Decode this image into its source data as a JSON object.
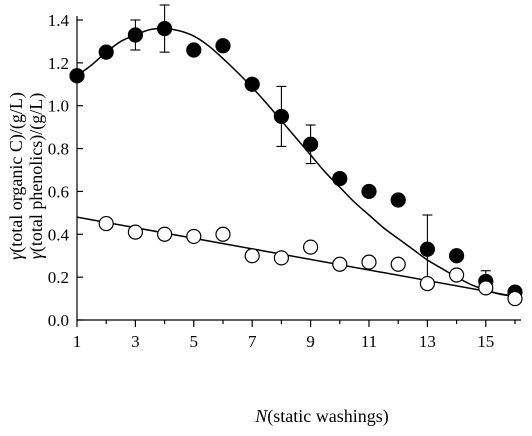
{
  "chart_data": {
    "type": "scatter",
    "x_label": {
      "prefix": "N",
      "rest": "(static washings)"
    },
    "y_labels": [
      {
        "prefix": "γ",
        "rest": "(total organic C)/(g/L)"
      },
      {
        "prefix": "γ",
        "rest": "(total phenolics)/(g/L)"
      }
    ],
    "xlim": [
      1,
      16
    ],
    "ylim": [
      0.0,
      1.4
    ],
    "x_ticks": [
      1,
      3,
      5,
      7,
      9,
      11,
      13,
      15
    ],
    "x_tick_labels": [
      "1",
      "3",
      "5",
      "7",
      "9",
      "11",
      "13",
      "15"
    ],
    "y_ticks": [
      0.0,
      0.2,
      0.4,
      0.6,
      0.8,
      1.0,
      1.2,
      1.4
    ],
    "y_tick_labels": [
      "0.0",
      "0.2",
      "0.4",
      "0.6",
      "0.8",
      "1.0",
      "1.2",
      "1.4"
    ],
    "grid": false,
    "colors": {
      "axis": "#000000",
      "filled_marker": "#000000",
      "open_marker_fill": "#ffffff"
    },
    "series": [
      {
        "marker": "filled-circle",
        "x": [
          1,
          2,
          3,
          4,
          5,
          6,
          7,
          8,
          9,
          10,
          11,
          12,
          13,
          14,
          15,
          16
        ],
        "y": [
          1.14,
          1.25,
          1.33,
          1.36,
          1.26,
          1.28,
          1.1,
          0.95,
          0.82,
          0.66,
          0.6,
          0.56,
          0.33,
          0.3,
          0.18,
          0.13
        ],
        "error": [
          null,
          null,
          0.07,
          0.11,
          null,
          null,
          null,
          0.14,
          0.09,
          null,
          null,
          null,
          0.16,
          null,
          0.05,
          null
        ],
        "fit": {
          "kind": "smooth-curve",
          "x": [
            1,
            1.5,
            2,
            2.5,
            3,
            3.5,
            4,
            4.5,
            5,
            5.5,
            6,
            6.5,
            7,
            7.5,
            8,
            8.5,
            9,
            9.5,
            10,
            10.5,
            11,
            11.5,
            12,
            12.5,
            13,
            13.5,
            14,
            14.5,
            15,
            15.5,
            16
          ],
          "y": [
            1.14,
            1.19,
            1.25,
            1.3,
            1.33,
            1.355,
            1.36,
            1.35,
            1.325,
            1.28,
            1.22,
            1.155,
            1.085,
            1.01,
            0.93,
            0.85,
            0.77,
            0.69,
            0.62,
            0.55,
            0.49,
            0.43,
            0.38,
            0.33,
            0.28,
            0.24,
            0.2,
            0.165,
            0.14,
            0.12,
            0.11
          ]
        }
      },
      {
        "marker": "open-circle",
        "x": [
          2,
          3,
          4,
          5,
          6,
          7,
          8,
          9,
          10,
          11,
          12,
          13,
          14,
          15,
          16
        ],
        "y": [
          0.45,
          0.41,
          0.4,
          0.39,
          0.4,
          0.3,
          0.29,
          0.34,
          0.26,
          0.27,
          0.26,
          0.17,
          0.21,
          0.15,
          0.1
        ],
        "error": [
          null,
          null,
          null,
          null,
          null,
          null,
          null,
          null,
          null,
          null,
          null,
          null,
          null,
          null,
          null
        ],
        "fit": {
          "kind": "linear",
          "x": [
            1,
            16
          ],
          "y": [
            0.48,
            0.11
          ]
        }
      }
    ]
  }
}
